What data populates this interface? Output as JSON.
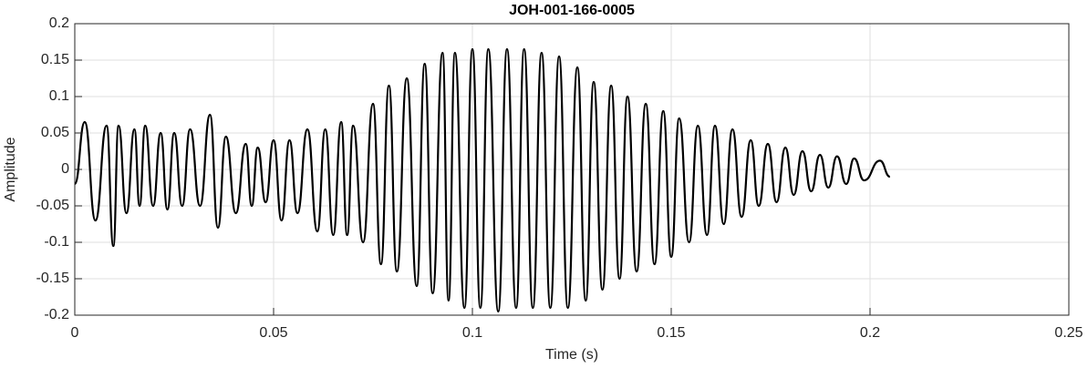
{
  "chart_data": {
    "type": "line",
    "title": "JOH-001-166-0005",
    "x_label": "Time (s)",
    "y_label": "Amplitude",
    "x": [
      0,
      0.0025,
      0.0052,
      0.008,
      0.0097,
      0.011,
      0.013,
      0.015,
      0.0163,
      0.0177,
      0.0197,
      0.0216,
      0.0233,
      0.025,
      0.027,
      0.029,
      0.0315,
      0.034,
      0.036,
      0.038,
      0.0405,
      0.043,
      0.0445,
      0.046,
      0.048,
      0.05,
      0.052,
      0.054,
      0.056,
      0.0585,
      0.061,
      0.063,
      0.065,
      0.067,
      0.0685,
      0.07,
      0.0725,
      0.075,
      0.077,
      0.079,
      0.081,
      0.0835,
      0.086,
      0.088,
      0.09,
      0.0925,
      0.094,
      0.0956,
      0.098,
      0.1,
      0.102,
      0.104,
      0.1065,
      0.1087,
      0.111,
      0.113,
      0.1152,
      0.1174,
      0.1196,
      0.1218,
      0.124,
      0.1264,
      0.1285,
      0.1305,
      0.1327,
      0.1349,
      0.137,
      0.139,
      0.1413,
      0.1436,
      0.1458,
      0.148,
      0.15,
      0.152,
      0.1545,
      0.1567,
      0.159,
      0.161,
      0.1632,
      0.1654,
      0.1677,
      0.17,
      0.172,
      0.1743,
      0.1765,
      0.1787,
      0.1808,
      0.183,
      0.1852,
      0.1874,
      0.1895,
      0.1917,
      0.194,
      0.196,
      0.1985,
      0.2025,
      0.205
    ],
    "series": [
      {
        "name": "Amplitude",
        "color": "#000000",
        "values": [
          -0.02,
          0.065,
          -0.07,
          0.06,
          -0.105,
          0.06,
          -0.06,
          0.055,
          -0.05,
          0.06,
          -0.05,
          0.05,
          -0.055,
          0.05,
          -0.05,
          0.055,
          -0.05,
          0.075,
          -0.08,
          0.045,
          -0.06,
          0.035,
          -0.05,
          0.03,
          -0.045,
          0.04,
          -0.07,
          0.04,
          -0.06,
          0.055,
          -0.085,
          0.055,
          -0.09,
          0.065,
          -0.09,
          0.06,
          -0.1,
          0.09,
          -0.13,
          0.115,
          -0.14,
          0.125,
          -0.16,
          0.145,
          -0.17,
          0.16,
          -0.18,
          0.16,
          -0.19,
          0.165,
          -0.19,
          0.165,
          -0.195,
          0.165,
          -0.19,
          0.165,
          -0.19,
          0.16,
          -0.19,
          0.155,
          -0.19,
          0.14,
          -0.18,
          0.12,
          -0.165,
          0.115,
          -0.15,
          0.1,
          -0.14,
          0.09,
          -0.13,
          0.08,
          -0.12,
          0.07,
          -0.1,
          0.06,
          -0.09,
          0.06,
          -0.075,
          0.055,
          -0.065,
          0.04,
          -0.05,
          0.035,
          -0.045,
          0.03,
          -0.035,
          0.025,
          -0.03,
          0.02,
          -0.025,
          0.018,
          -0.02,
          0.015,
          -0.015,
          0.012,
          -0.01
        ]
      }
    ],
    "xlim": [
      0,
      0.25
    ],
    "xticks": [
      0,
      0.05,
      0.1,
      0.15,
      0.2,
      0.25
    ],
    "ylim": [
      -0.2,
      0.2
    ],
    "yticks": [
      -0.2,
      -0.15,
      -0.1,
      -0.05,
      0,
      0.05,
      0.1,
      0.15,
      0.2
    ],
    "grid": true
  }
}
